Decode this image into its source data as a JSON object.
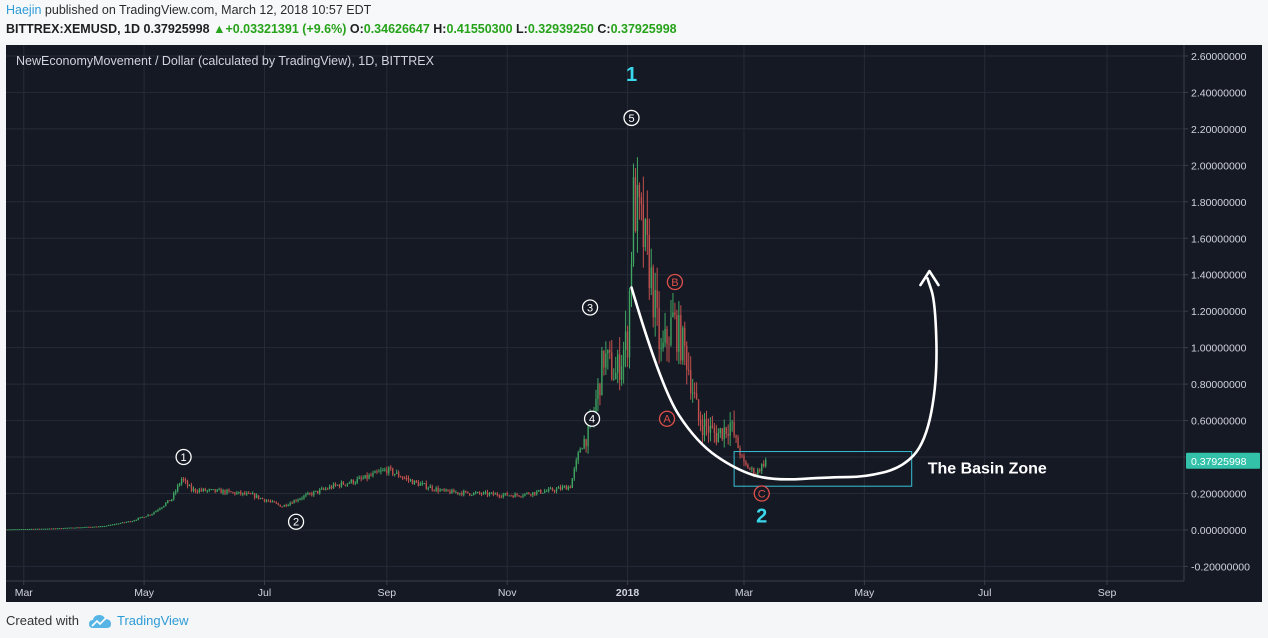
{
  "header": {
    "author": "Haejin",
    "published_text": " published on TradingView.com, March 12, 2018 10:57 EDT",
    "symbol": "BITTREX:XEMUSD, 1D",
    "last": "0.37925998",
    "change": "+0.03321391 (+9.6%)",
    "open_label": "O:",
    "open": "0.34626647",
    "high_label": "H:",
    "high": "0.41550300",
    "low_label": "L:",
    "low": "0.32939250",
    "close_label": "C:",
    "close": "0.37925998"
  },
  "footer": {
    "created_with": "Created with",
    "brand": "TradingView"
  },
  "colors": {
    "background": "#151924",
    "grid": "#262b38",
    "up": "#3fa562",
    "down": "#c0504d",
    "last_price": "#33c2a9",
    "wave_label": "#39d7e9",
    "corrective_label": "#e0504b",
    "basin_box": "#39c0d6",
    "axis_text": "#d1d4dc"
  },
  "chart_data": {
    "type": "candlestick",
    "title": "NewEconomyMovement / Dollar (calculated by TradingView), 1D, BITTREX",
    "y_ticks": [
      "2.60000000",
      "2.40000000",
      "2.20000000",
      "2.00000000",
      "1.80000000",
      "1.60000000",
      "1.40000000",
      "1.20000000",
      "1.00000000",
      "0.80000000",
      "0.60000000",
      "0.40000000",
      "0.20000000",
      "0.00000000",
      "-0.20000000"
    ],
    "ylim": [
      -0.28,
      2.66
    ],
    "x_range": [
      "2017-02-20",
      "2018-10-10"
    ],
    "x_ticks": [
      {
        "label": "Mar",
        "date": "2017-03-01"
      },
      {
        "label": "May",
        "date": "2017-05-01"
      },
      {
        "label": "Jul",
        "date": "2017-07-01"
      },
      {
        "label": "Sep",
        "date": "2017-09-01"
      },
      {
        "label": "Nov",
        "date": "2017-11-01"
      },
      {
        "label": "2018",
        "date": "2018-01-01"
      },
      {
        "label": "Mar",
        "date": "2018-03-01"
      },
      {
        "label": "May",
        "date": "2018-05-01"
      },
      {
        "label": "Jul",
        "date": "2018-07-01"
      },
      {
        "label": "Sep",
        "date": "2018-09-01"
      }
    ],
    "price_path": [
      {
        "date": "2017-02-20",
        "price": 0.003
      },
      {
        "date": "2017-03-15",
        "price": 0.008
      },
      {
        "date": "2017-04-10",
        "price": 0.02
      },
      {
        "date": "2017-04-25",
        "price": 0.05
      },
      {
        "date": "2017-05-05",
        "price": 0.09
      },
      {
        "date": "2017-05-15",
        "price": 0.17
      },
      {
        "date": "2017-05-20",
        "price": 0.28
      },
      {
        "date": "2017-05-25",
        "price": 0.22
      },
      {
        "date": "2017-06-10",
        "price": 0.21
      },
      {
        "date": "2017-06-25",
        "price": 0.19
      },
      {
        "date": "2017-07-10",
        "price": 0.13
      },
      {
        "date": "2017-07-20",
        "price": 0.18
      },
      {
        "date": "2017-08-05",
        "price": 0.24
      },
      {
        "date": "2017-08-20",
        "price": 0.28
      },
      {
        "date": "2017-09-01",
        "price": 0.33
      },
      {
        "date": "2017-09-15",
        "price": 0.26
      },
      {
        "date": "2017-09-30",
        "price": 0.21
      },
      {
        "date": "2017-10-15",
        "price": 0.2
      },
      {
        "date": "2017-11-05",
        "price": 0.19
      },
      {
        "date": "2017-11-25",
        "price": 0.22
      },
      {
        "date": "2017-12-03",
        "price": 0.24
      },
      {
        "date": "2017-12-08",
        "price": 0.45
      },
      {
        "date": "2017-12-14",
        "price": 0.58
      },
      {
        "date": "2017-12-20",
        "price": 0.95
      },
      {
        "date": "2017-12-26",
        "price": 0.85
      },
      {
        "date": "2018-01-01",
        "price": 1.05
      },
      {
        "date": "2018-01-04",
        "price": 1.8
      },
      {
        "date": "2018-01-07",
        "price": 1.7
      },
      {
        "date": "2018-01-12",
        "price": 1.45
      },
      {
        "date": "2018-01-18",
        "price": 0.95
      },
      {
        "date": "2018-01-24",
        "price": 1.15
      },
      {
        "date": "2018-01-31",
        "price": 0.95
      },
      {
        "date": "2018-02-06",
        "price": 0.6
      },
      {
        "date": "2018-02-15",
        "price": 0.52
      },
      {
        "date": "2018-02-22",
        "price": 0.58
      },
      {
        "date": "2018-03-01",
        "price": 0.36
      },
      {
        "date": "2018-03-07",
        "price": 0.31
      },
      {
        "date": "2018-03-12",
        "price": 0.38
      }
    ],
    "last_price": {
      "value": 0.37925998,
      "label": "0.37925998"
    },
    "wave_labels": [
      {
        "text": "1",
        "date": "2018-01-03",
        "price": 2.5,
        "style": "big"
      },
      {
        "text": "2",
        "date": "2018-03-10",
        "price": 0.08,
        "style": "big"
      },
      {
        "text": "1",
        "date": "2017-05-21",
        "price": 0.4,
        "style": "circle"
      },
      {
        "text": "2",
        "date": "2017-07-17",
        "price": 0.045,
        "style": "circle"
      },
      {
        "text": "3",
        "date": "2017-12-13",
        "price": 1.22,
        "style": "circle"
      },
      {
        "text": "4",
        "date": "2017-12-14",
        "price": 0.61,
        "style": "circle"
      },
      {
        "text": "5",
        "date": "2018-01-03",
        "price": 2.26,
        "style": "circle"
      },
      {
        "text": "A",
        "date": "2018-01-21",
        "price": 0.61,
        "style": "circle-red"
      },
      {
        "text": "B",
        "date": "2018-01-25",
        "price": 1.36,
        "style": "circle-red"
      },
      {
        "text": "C",
        "date": "2018-03-10",
        "price": 0.2,
        "style": "circle-red"
      }
    ],
    "basin_box": {
      "x1": "2018-02-24",
      "x2": "2018-05-25",
      "y1": 0.24,
      "y2": 0.43
    },
    "basin_label": "The Basin Zone",
    "projection_path": [
      {
        "date": "2018-01-03",
        "price": 1.33
      },
      {
        "date": "2018-01-18",
        "price": 0.78
      },
      {
        "date": "2018-02-05",
        "price": 0.48
      },
      {
        "date": "2018-02-25",
        "price": 0.33
      },
      {
        "date": "2018-03-15",
        "price": 0.27
      },
      {
        "date": "2018-04-15",
        "price": 0.29
      },
      {
        "date": "2018-05-01",
        "price": 0.29
      },
      {
        "date": "2018-05-20",
        "price": 0.34
      },
      {
        "date": "2018-06-01",
        "price": 0.48
      },
      {
        "date": "2018-06-07",
        "price": 0.82
      },
      {
        "date": "2018-06-06",
        "price": 1.25
      },
      {
        "date": "2018-06-02",
        "price": 1.38
      }
    ],
    "projection_arrow_tip": {
      "date": "2018-06-03",
      "price": 1.42
    }
  }
}
